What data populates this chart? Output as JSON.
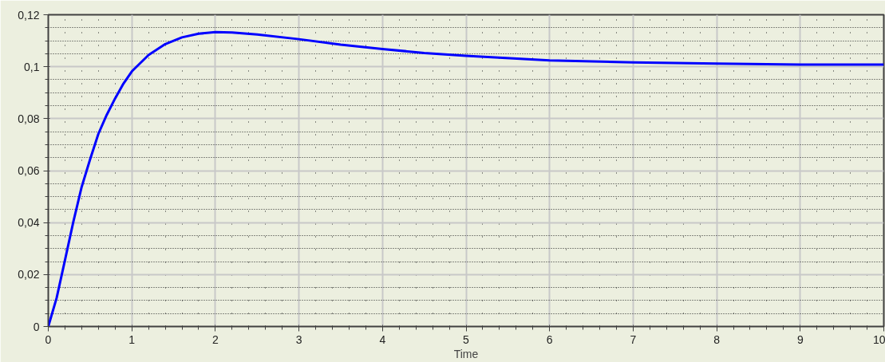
{
  "chart_data": {
    "type": "line",
    "xlabel": "Time",
    "x": [
      0,
      0.1,
      0.2,
      0.3,
      0.4,
      0.5,
      0.6,
      0.7,
      0.8,
      0.9,
      1.0,
      1.2,
      1.4,
      1.6,
      1.8,
      2.0,
      2.2,
      2.5,
      3.0,
      3.5,
      4.0,
      4.5,
      5.0,
      6.0,
      7.0,
      8.0,
      9.0,
      10.0
    ],
    "series": [
      {
        "color": "#0000ff",
        "values": [
          0,
          0.011,
          0.0256,
          0.0403,
          0.0538,
          0.0643,
          0.0742,
          0.0815,
          0.0878,
          0.0935,
          0.0982,
          0.1045,
          0.1087,
          0.1113,
          0.1127,
          0.1133,
          0.1132,
          0.1124,
          0.1106,
          0.1085,
          0.1068,
          0.1053,
          0.1042,
          0.1024,
          0.1017,
          0.1012,
          0.1008,
          0.1008
        ]
      }
    ],
    "xlim": [
      0,
      10
    ],
    "xticks": [
      0,
      1,
      2,
      3,
      4,
      5,
      6,
      7,
      8,
      9,
      10
    ],
    "ylim": [
      0,
      0.12
    ],
    "yticks": [
      0,
      {
        "value": 0.02,
        "label": "0,02"
      },
      {
        "value": 0.04,
        "label": "0,04"
      },
      {
        "value": 0.06,
        "label": "0,06"
      },
      {
        "value": 0.08,
        "label": "0,08"
      },
      {
        "value": 0.1,
        "label": "0,1"
      },
      {
        "value": 0.12,
        "label": "0,12"
      }
    ],
    "grid": true,
    "marker": "none",
    "line_style": "solid"
  }
}
